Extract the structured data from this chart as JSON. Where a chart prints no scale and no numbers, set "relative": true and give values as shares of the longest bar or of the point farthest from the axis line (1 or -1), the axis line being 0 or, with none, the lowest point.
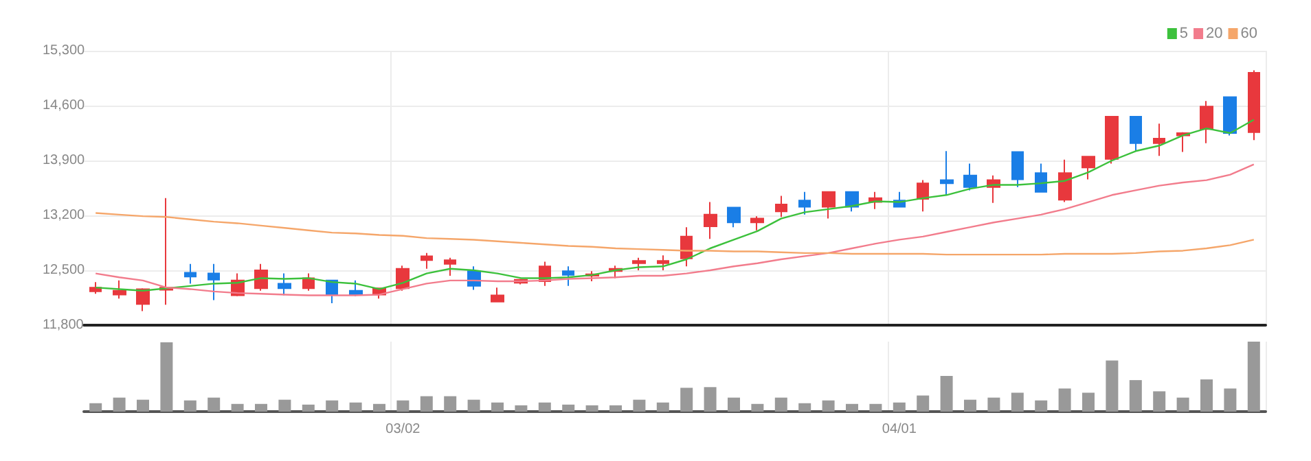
{
  "chart_data": [
    {
      "type": "candlestick",
      "categories": [
        null,
        null,
        null,
        null,
        null,
        null,
        null,
        null,
        null,
        null,
        null,
        null,
        null,
        null,
        null,
        null,
        null,
        null,
        null,
        null,
        null,
        null,
        null,
        null,
        null,
        null,
        null,
        null,
        null,
        null,
        null,
        null,
        null,
        null,
        null,
        null,
        null,
        null,
        null,
        null,
        null,
        null,
        null,
        null,
        null,
        null,
        null,
        null,
        null,
        null
      ],
      "ohlc": [
        [
          12230,
          12350,
          12200,
          12280
        ],
        [
          12190,
          12370,
          12140,
          12240
        ],
        [
          12070,
          12270,
          11980,
          12260
        ],
        [
          12250,
          13420,
          12060,
          12280
        ],
        [
          12470,
          12580,
          12330,
          12420
        ],
        [
          12460,
          12580,
          12120,
          12380
        ],
        [
          12180,
          12460,
          12170,
          12370
        ],
        [
          12270,
          12580,
          12240,
          12500
        ],
        [
          12330,
          12460,
          12180,
          12270
        ],
        [
          12270,
          12460,
          12240,
          12400
        ],
        [
          12370,
          12370,
          12080,
          12190
        ],
        [
          12240,
          12370,
          12170,
          12190
        ],
        [
          12190,
          12280,
          12140,
          12270
        ],
        [
          12270,
          12560,
          12240,
          12520
        ],
        [
          12630,
          12720,
          12520,
          12680
        ],
        [
          12580,
          12660,
          12430,
          12630
        ],
        [
          12490,
          12550,
          12250,
          12300
        ],
        [
          12100,
          12280,
          12090,
          12180
        ],
        [
          12340,
          12390,
          12320,
          12380
        ],
        [
          12360,
          12610,
          12300,
          12550
        ],
        [
          12490,
          12550,
          12300,
          12440
        ],
        [
          12430,
          12490,
          12360,
          12450
        ],
        [
          12490,
          12560,
          12400,
          12520
        ],
        [
          12590,
          12660,
          12500,
          12620
        ],
        [
          12590,
          12690,
          12500,
          12620
        ],
        [
          12650,
          13050,
          12550,
          12930
        ],
        [
          13060,
          13370,
          12900,
          13210
        ],
        [
          13300,
          13300,
          13050,
          13110
        ],
        [
          13110,
          13190,
          13010,
          13160
        ],
        [
          13250,
          13450,
          13180,
          13340
        ],
        [
          13390,
          13500,
          13210,
          13310
        ],
        [
          13310,
          13500,
          13160,
          13500
        ],
        [
          13500,
          13500,
          13250,
          13310
        ],
        [
          13370,
          13500,
          13280,
          13420
        ],
        [
          13390,
          13500,
          13300,
          13310
        ],
        [
          13410,
          13650,
          13250,
          13610
        ],
        [
          13650,
          14020,
          13460,
          13610
        ],
        [
          13710,
          13860,
          13520,
          13560
        ],
        [
          13560,
          13710,
          13360,
          13650
        ],
        [
          14010,
          14010,
          13560,
          13660
        ],
        [
          13740,
          13860,
          13490,
          13500
        ],
        [
          13400,
          13910,
          13370,
          13740
        ],
        [
          13810,
          13950,
          13660,
          13950
        ],
        [
          13920,
          14460,
          13860,
          14460
        ],
        [
          14460,
          14460,
          14020,
          14120
        ],
        [
          14120,
          14370,
          13960,
          14180
        ],
        [
          14220,
          14260,
          14010,
          14250
        ],
        [
          14300,
          14660,
          14120,
          14590
        ],
        [
          14710,
          14710,
          14220,
          14250
        ],
        [
          14260,
          15050,
          14160,
          15020
        ]
      ],
      "colors": [
        "#e8383d",
        "#e8383d",
        "#e8383d",
        "#e8383d",
        "#1a7ee6",
        "#1a7ee6",
        "#e8383d",
        "#e8383d",
        "#1a7ee6",
        "#e8383d",
        "#1a7ee6",
        "#1a7ee6",
        "#e8383d",
        "#e8383d",
        "#e8383d",
        "#e8383d",
        "#1a7ee6",
        "#e8383d",
        "#e8383d",
        "#e8383d",
        "#1a7ee6",
        "#e8383d",
        "#e8383d",
        "#e8383d",
        "#e8383d",
        "#e8383d",
        "#e8383d",
        "#1a7ee6",
        "#e8383d",
        "#e8383d",
        "#1a7ee6",
        "#e8383d",
        "#1a7ee6",
        "#e8383d",
        "#1a7ee6",
        "#e8383d",
        "#1a7ee6",
        "#1a7ee6",
        "#e8383d",
        "#1a7ee6",
        "#1a7ee6",
        "#e8383d",
        "#e8383d",
        "#e8383d",
        "#1a7ee6",
        "#e8383d",
        "#e8383d",
        "#e8383d",
        "#1a7ee6",
        "#e8383d"
      ],
      "series": [
        {
          "name": "5",
          "type": "line",
          "color": "#3cc13c",
          "values": [
            12280,
            12260,
            12240,
            12270,
            12300,
            12330,
            12340,
            12400,
            12390,
            12400,
            12350,
            12330,
            12260,
            12340,
            12460,
            12520,
            12500,
            12460,
            12400,
            12400,
            12410,
            12440,
            12500,
            12540,
            12550,
            12640,
            12780,
            12890,
            13000,
            13160,
            13240,
            13280,
            13320,
            13380,
            13370,
            13420,
            13460,
            13540,
            13590,
            13590,
            13610,
            13640,
            13750,
            13900,
            14020,
            14090,
            14220,
            14310,
            14250,
            14420
          ]
        },
        {
          "name": "20",
          "type": "line",
          "color": "#f27c8c",
          "values": [
            12460,
            12410,
            12370,
            12280,
            12260,
            12230,
            12210,
            12200,
            12190,
            12180,
            12180,
            12180,
            12190,
            12260,
            12330,
            12370,
            12370,
            12360,
            12360,
            12370,
            12390,
            12400,
            12410,
            12430,
            12430,
            12460,
            12500,
            12550,
            12590,
            12640,
            12680,
            12720,
            12780,
            12840,
            12890,
            12930,
            12990,
            13050,
            13110,
            13160,
            13210,
            13280,
            13370,
            13460,
            13520,
            13580,
            13620,
            13650,
            13720,
            13850
          ]
        },
        {
          "name": "60",
          "type": "line",
          "color": "#f5a66a",
          "values": [
            13230,
            13210,
            13190,
            13180,
            13150,
            13120,
            13100,
            13070,
            13040,
            13010,
            12980,
            12970,
            12950,
            12940,
            12910,
            12900,
            12890,
            12870,
            12850,
            12830,
            12810,
            12800,
            12780,
            12770,
            12760,
            12750,
            12750,
            12740,
            12740,
            12730,
            12720,
            12720,
            12710,
            12710,
            12710,
            12710,
            12700,
            12700,
            12700,
            12700,
            12700,
            12710,
            12710,
            12710,
            12720,
            12740,
            12750,
            12780,
            12820,
            12890
          ]
        }
      ],
      "ylim": [
        11800,
        15300
      ],
      "yticks": [
        {
          "value": 11800,
          "label": "11,800"
        },
        {
          "value": 12500,
          "label": "12,500"
        },
        {
          "value": 13200,
          "label": "13,200"
        },
        {
          "value": 13900,
          "label": "13,900"
        },
        {
          "value": 14600,
          "label": "14,600"
        },
        {
          "value": 15300,
          "label": "15,300"
        }
      ],
      "grid": true,
      "legend": "top right",
      "tick_labels": "y"
    },
    {
      "type": "bar",
      "relative": true,
      "color": "#999999",
      "categories": [
        null,
        null,
        null,
        null,
        null,
        null,
        null,
        null,
        null,
        null,
        null,
        null,
        null,
        "03/02",
        null,
        null,
        null,
        null,
        null,
        null,
        null,
        null,
        null,
        null,
        null,
        null,
        null,
        null,
        null,
        null,
        null,
        null,
        null,
        null,
        "04/01",
        null,
        null,
        null,
        null,
        null,
        null,
        null,
        null,
        null,
        null,
        null,
        null,
        null,
        null,
        null
      ],
      "values": [
        0.12,
        0.2,
        0.17,
        0.99,
        0.16,
        0.2,
        0.11,
        0.11,
        0.17,
        0.1,
        0.16,
        0.13,
        0.11,
        0.16,
        0.22,
        0.22,
        0.17,
        0.13,
        0.09,
        0.13,
        0.1,
        0.09,
        0.09,
        0.17,
        0.13,
        0.34,
        0.35,
        0.2,
        0.11,
        0.2,
        0.12,
        0.16,
        0.11,
        0.11,
        0.13,
        0.23,
        0.51,
        0.17,
        0.2,
        0.27,
        0.16,
        0.33,
        0.27,
        0.73,
        0.45,
        0.29,
        0.2,
        0.46,
        0.33,
        1
      ],
      "grid": "x",
      "tick_labels": "x"
    }
  ]
}
